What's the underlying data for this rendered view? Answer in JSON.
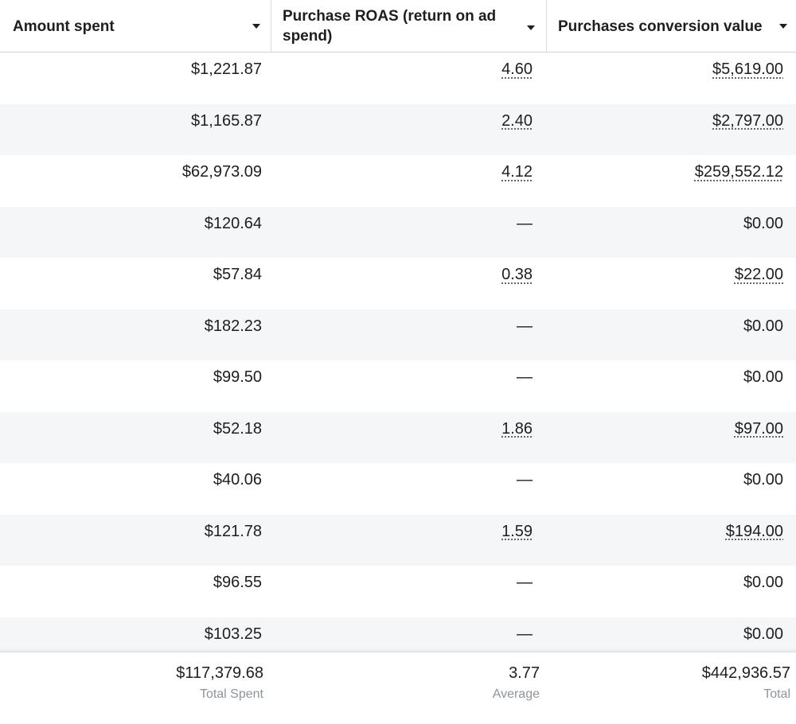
{
  "columns": [
    {
      "label": "Amount spent"
    },
    {
      "label": "Purchase ROAS (return on ad spend)"
    },
    {
      "label": "Purchases conversion value"
    }
  ],
  "rows": [
    {
      "amount_spent": "$1,221.87",
      "roas": "4.60",
      "conversion_value": "$5,619.00"
    },
    {
      "amount_spent": "$1,165.87",
      "roas": "2.40",
      "conversion_value": "$2,797.00"
    },
    {
      "amount_spent": "$62,973.09",
      "roas": "4.12",
      "conversion_value": "$259,552.12"
    },
    {
      "amount_spent": "$120.64",
      "roas": "—",
      "conversion_value": "$0.00"
    },
    {
      "amount_spent": "$57.84",
      "roas": "0.38",
      "conversion_value": "$22.00"
    },
    {
      "amount_spent": "$182.23",
      "roas": "—",
      "conversion_value": "$0.00"
    },
    {
      "amount_spent": "$99.50",
      "roas": "—",
      "conversion_value": "$0.00"
    },
    {
      "amount_spent": "$52.18",
      "roas": "1.86",
      "conversion_value": "$97.00"
    },
    {
      "amount_spent": "$40.06",
      "roas": "—",
      "conversion_value": "$0.00"
    },
    {
      "amount_spent": "$121.78",
      "roas": "1.59",
      "conversion_value": "$194.00"
    },
    {
      "amount_spent": "$96.55",
      "roas": "—",
      "conversion_value": "$0.00"
    },
    {
      "amount_spent": "$103.25",
      "roas": "—",
      "conversion_value": "$0.00"
    }
  ],
  "totals": {
    "amount_spent": {
      "value": "$117,379.68",
      "label": "Total Spent"
    },
    "roas": {
      "value": "3.77",
      "label": "Average"
    },
    "conversion_value": {
      "value": "$442,936.57",
      "label": "Total"
    }
  },
  "colors": {
    "text": "#1c1e21",
    "muted": "#8d949e",
    "row_alt": "#f5f6f7",
    "border": "#dadde1"
  }
}
